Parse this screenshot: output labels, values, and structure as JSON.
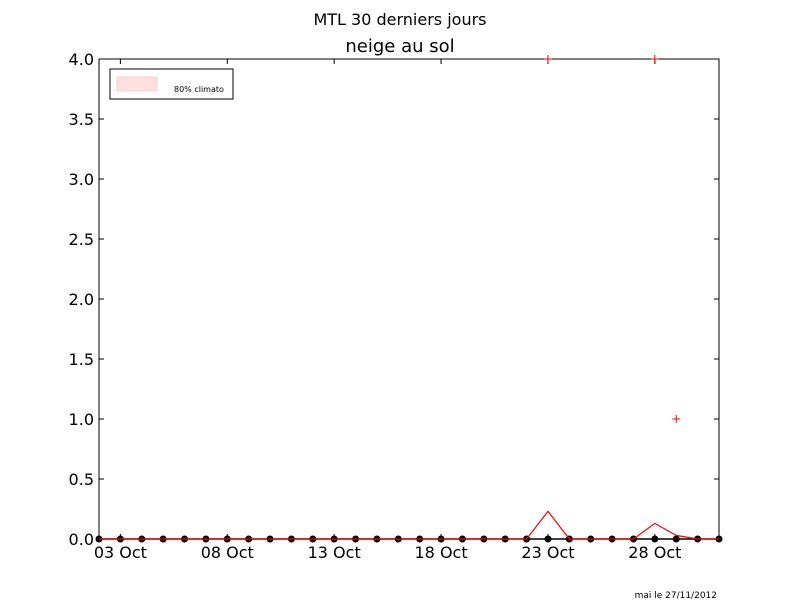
{
  "header": {
    "suptitle": "MTL 30 derniers jours",
    "title": "neige au sol"
  },
  "footer": {
    "text": "mai le 27/11/2012"
  },
  "legend": {
    "label": "80% climato",
    "color": "#ffe0e0",
    "placement": "upper-left"
  },
  "colors": {
    "observed": "#000000",
    "climato_line": "#ff0000",
    "climato_marker": "#ff0000"
  },
  "chart_data": {
    "type": "line",
    "title": "neige au sol",
    "ylim": [
      0.0,
      4.0
    ],
    "xlim": [
      1,
      30
    ],
    "y_ticks": [
      {
        "value": 0.0,
        "label": "0.0"
      },
      {
        "value": 0.5,
        "label": "0.5"
      },
      {
        "value": 1.0,
        "label": "1.0"
      },
      {
        "value": 1.5,
        "label": "1.5"
      },
      {
        "value": 2.0,
        "label": "2.0"
      },
      {
        "value": 2.5,
        "label": "2.5"
      },
      {
        "value": 3.0,
        "label": "3.0"
      },
      {
        "value": 3.5,
        "label": "3.5"
      },
      {
        "value": 4.0,
        "label": "4.0"
      }
    ],
    "x_ticks": [
      {
        "value": 2,
        "label": "03 Oct"
      },
      {
        "value": 7,
        "label": "08 Oct"
      },
      {
        "value": 12,
        "label": "13 Oct"
      },
      {
        "value": 17,
        "label": "18 Oct"
      },
      {
        "value": 22,
        "label": "23 Oct"
      },
      {
        "value": 27,
        "label": "28 Oct"
      }
    ],
    "x": [
      1,
      2,
      3,
      4,
      5,
      6,
      7,
      8,
      9,
      10,
      11,
      12,
      13,
      14,
      15,
      16,
      17,
      18,
      19,
      20,
      21,
      22,
      23,
      24,
      25,
      26,
      27,
      28,
      29,
      30
    ],
    "series": [
      {
        "values": [
          0,
          0,
          0,
          0,
          0,
          0,
          0,
          0,
          0,
          0,
          0,
          0,
          0,
          0,
          0,
          0,
          0,
          0,
          0,
          0,
          0,
          0,
          0,
          0,
          0,
          0,
          0,
          0,
          0,
          0
        ]
      },
      {
        "values": [
          0,
          0,
          0,
          0,
          0,
          0,
          0,
          0,
          0,
          0,
          0,
          0,
          0,
          0,
          0,
          0,
          0,
          0,
          0,
          0,
          0,
          0.23,
          0,
          0,
          0,
          0,
          0.13,
          0.03,
          0,
          0
        ]
      }
    ],
    "markers": [
      {
        "x": 22,
        "y": 4.0
      },
      {
        "x": 27,
        "y": 4.0
      },
      {
        "x": 28,
        "y": 1.0
      }
    ]
  }
}
